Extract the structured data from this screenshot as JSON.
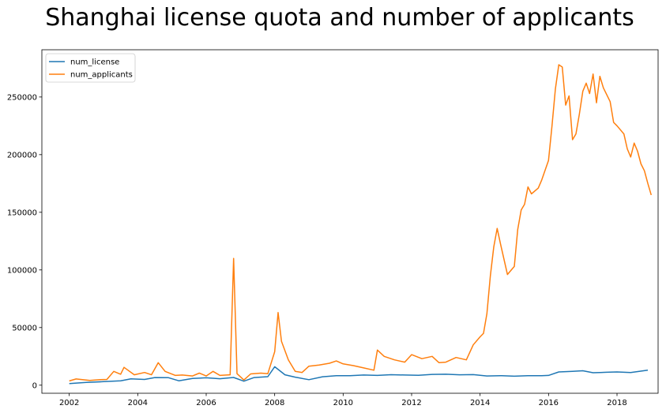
{
  "chart_data": {
    "type": "line",
    "title": "Shanghai license quota and number of applicants",
    "xlabel": "",
    "ylabel": "",
    "xlim": [
      2001.2,
      2019.2
    ],
    "ylim": [
      -7000,
      291000
    ],
    "x_ticks": [
      2002,
      2004,
      2006,
      2008,
      2010,
      2012,
      2014,
      2016,
      2018
    ],
    "y_ticks": [
      0,
      50000,
      100000,
      150000,
      200000,
      250000
    ],
    "grid": false,
    "legend_position": "top-left",
    "series": [
      {
        "name": "num_license",
        "color": "#1f77b4",
        "points": [
          [
            2002.0,
            1400
          ],
          [
            2002.5,
            2400
          ],
          [
            2003.0,
            3100
          ],
          [
            2003.5,
            3800
          ],
          [
            2003.8,
            5500
          ],
          [
            2004.2,
            5000
          ],
          [
            2004.5,
            6600
          ],
          [
            2004.9,
            6500
          ],
          [
            2005.2,
            3800
          ],
          [
            2005.6,
            5800
          ],
          [
            2006.0,
            6400
          ],
          [
            2006.4,
            5600
          ],
          [
            2006.8,
            6700
          ],
          [
            2007.1,
            3500
          ],
          [
            2007.4,
            6600
          ],
          [
            2007.8,
            7400
          ],
          [
            2008.0,
            16000
          ],
          [
            2008.3,
            9000
          ],
          [
            2008.6,
            7000
          ],
          [
            2009.0,
            4800
          ],
          [
            2009.4,
            7300
          ],
          [
            2009.8,
            8200
          ],
          [
            2010.2,
            8200
          ],
          [
            2010.6,
            8800
          ],
          [
            2011.0,
            8500
          ],
          [
            2011.4,
            9100
          ],
          [
            2011.8,
            8800
          ],
          [
            2012.2,
            8600
          ],
          [
            2012.6,
            9400
          ],
          [
            2013.0,
            9500
          ],
          [
            2013.4,
            9000
          ],
          [
            2013.8,
            9200
          ],
          [
            2014.2,
            8000
          ],
          [
            2014.6,
            8300
          ],
          [
            2015.0,
            7800
          ],
          [
            2015.4,
            8200
          ],
          [
            2015.8,
            8200
          ],
          [
            2016.0,
            8500
          ],
          [
            2016.3,
            11500
          ],
          [
            2016.7,
            12000
          ],
          [
            2017.0,
            12500
          ],
          [
            2017.3,
            10800
          ],
          [
            2017.7,
            11200
          ],
          [
            2018.0,
            11500
          ],
          [
            2018.4,
            11000
          ],
          [
            2018.9,
            13000
          ]
        ]
      },
      {
        "name": "num_applicants",
        "color": "#ff7f0e",
        "points": [
          [
            2002.0,
            3700
          ],
          [
            2002.2,
            5400
          ],
          [
            2002.6,
            4200
          ],
          [
            2002.9,
            4800
          ],
          [
            2003.1,
            5000
          ],
          [
            2003.3,
            12000
          ],
          [
            2003.5,
            9500
          ],
          [
            2003.6,
            15500
          ],
          [
            2003.9,
            9000
          ],
          [
            2004.2,
            11000
          ],
          [
            2004.4,
            9000
          ],
          [
            2004.6,
            19500
          ],
          [
            2004.8,
            12000
          ],
          [
            2005.1,
            8500
          ],
          [
            2005.3,
            8800
          ],
          [
            2005.6,
            8000
          ],
          [
            2005.8,
            10500
          ],
          [
            2006.0,
            8000
          ],
          [
            2006.2,
            12000
          ],
          [
            2006.4,
            8500
          ],
          [
            2006.7,
            9000
          ],
          [
            2006.8,
            110000
          ],
          [
            2006.9,
            10000
          ],
          [
            2007.1,
            4500
          ],
          [
            2007.3,
            9800
          ],
          [
            2007.6,
            10500
          ],
          [
            2007.8,
            10000
          ],
          [
            2008.0,
            29000
          ],
          [
            2008.1,
            63000
          ],
          [
            2008.2,
            38000
          ],
          [
            2008.4,
            22000
          ],
          [
            2008.6,
            12000
          ],
          [
            2008.8,
            11000
          ],
          [
            2009.0,
            16500
          ],
          [
            2009.3,
            17500
          ],
          [
            2009.6,
            19000
          ],
          [
            2009.8,
            21000
          ],
          [
            2010.0,
            18500
          ],
          [
            2010.3,
            17000
          ],
          [
            2010.6,
            15000
          ],
          [
            2010.9,
            13000
          ],
          [
            2011.0,
            30500
          ],
          [
            2011.2,
            25000
          ],
          [
            2011.5,
            22000
          ],
          [
            2011.8,
            20000
          ],
          [
            2012.0,
            26500
          ],
          [
            2012.3,
            23000
          ],
          [
            2012.6,
            25000
          ],
          [
            2012.8,
            19500
          ],
          [
            2013.0,
            20000
          ],
          [
            2013.3,
            24000
          ],
          [
            2013.6,
            22000
          ],
          [
            2013.8,
            35000
          ],
          [
            2014.0,
            42000
          ],
          [
            2014.1,
            45000
          ],
          [
            2014.2,
            62000
          ],
          [
            2014.3,
            95000
          ],
          [
            2014.4,
            120000
          ],
          [
            2014.5,
            136000
          ],
          [
            2014.6,
            122000
          ],
          [
            2014.8,
            96000
          ],
          [
            2015.0,
            103000
          ],
          [
            2015.1,
            135000
          ],
          [
            2015.2,
            152000
          ],
          [
            2015.3,
            157000
          ],
          [
            2015.4,
            172000
          ],
          [
            2015.5,
            166000
          ],
          [
            2015.7,
            171000
          ],
          [
            2015.8,
            178000
          ],
          [
            2016.0,
            195000
          ],
          [
            2016.1,
            225000
          ],
          [
            2016.2,
            257000
          ],
          [
            2016.3,
            278000
          ],
          [
            2016.4,
            276000
          ],
          [
            2016.5,
            243000
          ],
          [
            2016.6,
            251000
          ],
          [
            2016.7,
            213000
          ],
          [
            2016.8,
            218000
          ],
          [
            2016.9,
            235000
          ],
          [
            2017.0,
            255000
          ],
          [
            2017.1,
            262000
          ],
          [
            2017.2,
            253000
          ],
          [
            2017.3,
            270000
          ],
          [
            2017.4,
            245000
          ],
          [
            2017.5,
            268000
          ],
          [
            2017.6,
            258000
          ],
          [
            2017.8,
            246000
          ],
          [
            2017.9,
            228000
          ],
          [
            2018.0,
            225000
          ],
          [
            2018.2,
            218000
          ],
          [
            2018.3,
            205000
          ],
          [
            2018.4,
            198000
          ],
          [
            2018.5,
            210000
          ],
          [
            2018.6,
            203000
          ],
          [
            2018.7,
            192000
          ],
          [
            2018.8,
            186000
          ],
          [
            2018.9,
            175000
          ],
          [
            2019.0,
            165000
          ]
        ]
      }
    ]
  }
}
